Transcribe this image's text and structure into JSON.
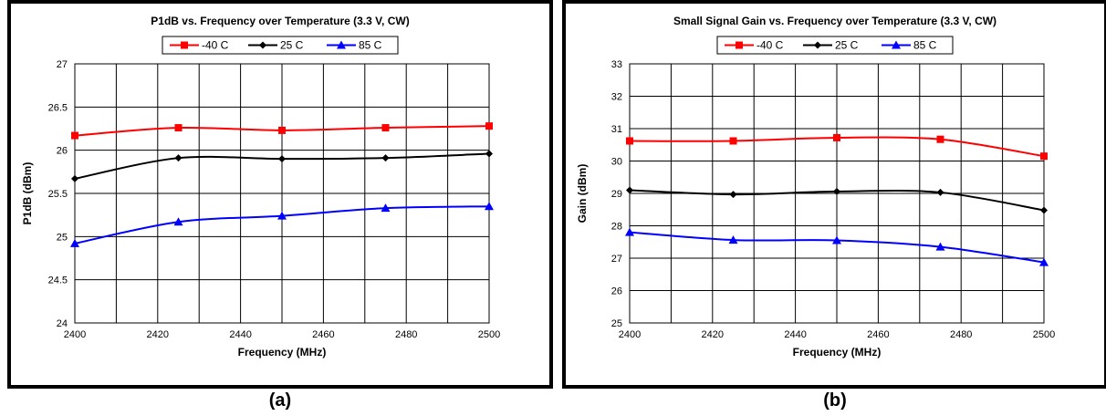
{
  "captions": [
    "(a)",
    "(b)"
  ],
  "chart_data": [
    {
      "type": "line",
      "title": "P1dB vs. Frequency over Temperature (3.3 V, CW)",
      "xlabel": "Frequency (MHz)",
      "ylabel": "P1dB (dBm)",
      "xlim": [
        2400,
        2500
      ],
      "ylim": [
        24,
        27
      ],
      "xticks": [
        2400,
        2420,
        2440,
        2460,
        2480,
        2500
      ],
      "xtick_labels": [
        "2400",
        "2420",
        "2440",
        "2460",
        "2480",
        "2500"
      ],
      "yticks": [
        24,
        24.5,
        25,
        25.5,
        26,
        26.5,
        27
      ],
      "ytick_labels": [
        "24",
        "24.5",
        "25",
        "25.5",
        "26",
        "26.5",
        "27"
      ],
      "grid": true,
      "legend_position": "top",
      "x": [
        2400,
        2425,
        2450,
        2475,
        2500
      ],
      "series": [
        {
          "name": "-40 C",
          "color": "#ff0000",
          "marker": "square",
          "values": [
            26.17,
            26.26,
            26.23,
            26.26,
            26.28
          ]
        },
        {
          "name": "25 C",
          "color": "#000000",
          "marker": "diamond",
          "values": [
            25.67,
            25.91,
            25.9,
            25.91,
            25.96
          ]
        },
        {
          "name": "85 C",
          "color": "#0000ff",
          "marker": "triangle",
          "values": [
            24.92,
            25.17,
            25.24,
            25.33,
            25.35
          ]
        }
      ]
    },
    {
      "type": "line",
      "title": "Small Signal Gain vs. Frequency over Temperature (3.3 V, CW)",
      "xlabel": "Frequency (MHz)",
      "ylabel": "Gain (dBm)",
      "xlim": [
        2400,
        2500
      ],
      "ylim": [
        25,
        33
      ],
      "xticks": [
        2400,
        2420,
        2440,
        2460,
        2480,
        2500
      ],
      "xtick_labels": [
        "2400",
        "2420",
        "2440",
        "2460",
        "2480",
        "2500"
      ],
      "yticks": [
        25,
        26,
        27,
        28,
        29,
        30,
        31,
        32,
        33
      ],
      "ytick_labels": [
        "25",
        "26",
        "27",
        "28",
        "29",
        "30",
        "31",
        "32",
        "33"
      ],
      "grid": true,
      "legend_position": "top",
      "x": [
        2400,
        2425,
        2450,
        2475,
        2500
      ],
      "series": [
        {
          "name": "-40 C",
          "color": "#ff0000",
          "marker": "square",
          "values": [
            30.62,
            30.62,
            30.72,
            30.67,
            30.15
          ]
        },
        {
          "name": "25 C",
          "color": "#000000",
          "marker": "diamond",
          "values": [
            29.1,
            28.97,
            29.06,
            29.03,
            28.48
          ]
        },
        {
          "name": "85 C",
          "color": "#0000ff",
          "marker": "triangle",
          "values": [
            27.8,
            27.56,
            27.55,
            27.35,
            26.87
          ]
        }
      ]
    }
  ]
}
